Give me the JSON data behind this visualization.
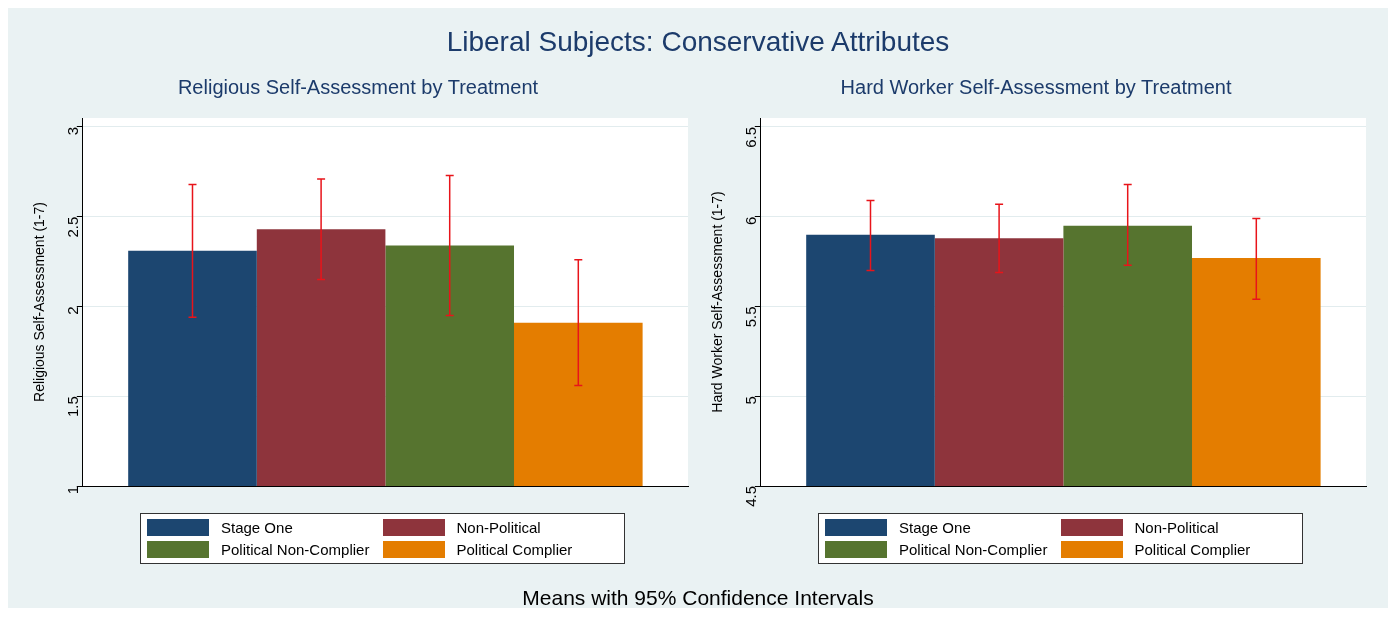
{
  "chart_data": [
    {
      "type": "bar",
      "title": "Religious Self-Assessment by Treatment",
      "ylabel": "Religious Self-Assessment (1-7)",
      "categories": [
        null
      ],
      "series": [
        {
          "name": "Stage One",
          "color": "#1c4670",
          "values": [
            2.31
          ],
          "errors": [
            [
              1.94,
              2.68
            ]
          ]
        },
        {
          "name": "Non-Political",
          "color": "#8e343c",
          "values": [
            2.43
          ],
          "errors": [
            [
              2.15,
              2.71
            ]
          ]
        },
        {
          "name": "Political Non-Complier",
          "color": "#56742f",
          "values": [
            2.34
          ],
          "errors": [
            [
              1.95,
              2.73
            ]
          ]
        },
        {
          "name": "Political Complier",
          "color": "#e47d00",
          "values": [
            1.91
          ],
          "errors": [
            [
              1.56,
              2.26
            ]
          ]
        }
      ],
      "ylim": [
        1,
        3.05
      ],
      "yticks": [
        1,
        1.5,
        2,
        2.5,
        3
      ],
      "grid": "y",
      "legend": "bottom",
      "tick_labels": "y",
      "annotations": [
        "Liberal Subjects: Conservative Attributes",
        "Means with 95% Confidence Intervals"
      ]
    },
    {
      "type": "bar",
      "title": "Hard Worker Self-Assessment by Treatment",
      "ylabel": "Hard Worker Self-Assessment (1-7)",
      "categories": [
        null
      ],
      "series": [
        {
          "name": "Stage One",
          "color": "#1c4670",
          "values": [
            5.9
          ],
          "errors": [
            [
              5.7,
              6.09
            ]
          ]
        },
        {
          "name": "Non-Political",
          "color": "#8e343c",
          "values": [
            5.88
          ],
          "errors": [
            [
              5.69,
              6.07
            ]
          ]
        },
        {
          "name": "Political Non-Complier",
          "color": "#56742f",
          "values": [
            5.95
          ],
          "errors": [
            [
              5.73,
              6.18
            ]
          ]
        },
        {
          "name": "Political Complier",
          "color": "#e47d00",
          "values": [
            5.77
          ],
          "errors": [
            [
              5.54,
              5.99
            ]
          ]
        }
      ],
      "ylim": [
        4.5,
        6.55
      ],
      "yticks": [
        4.5,
        5,
        5.5,
        6,
        6.5
      ],
      "grid": "y",
      "legend": "bottom",
      "tick_labels": "y"
    }
  ]
}
